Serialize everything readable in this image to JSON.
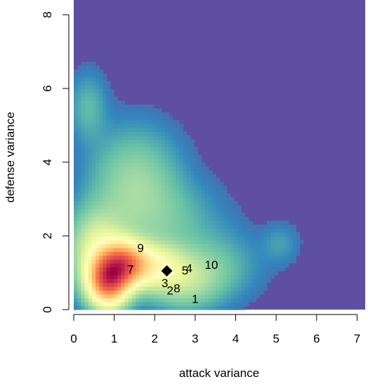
{
  "chart_data": {
    "type": "heatmap",
    "title": "",
    "xlabel": "attack variance",
    "ylabel": "defense variance",
    "xlim": [
      0,
      7.2
    ],
    "ylim": [
      0,
      8.4
    ],
    "x_ticks": [
      0,
      1,
      2,
      3,
      4,
      5,
      6,
      7
    ],
    "y_ticks": [
      0,
      2,
      4,
      6,
      8
    ],
    "grid": false,
    "palette": [
      "#5E4FA2",
      "#3288BD",
      "#66C2A5",
      "#ABDDA4",
      "#E6F598",
      "#FFFFBF",
      "#FEE08B",
      "#FDAE61",
      "#F46D43",
      "#D53E4F",
      "#9E0142"
    ],
    "background_color": "#5E4FA2",
    "density_components": [
      {
        "x": 0.85,
        "y": 0.8,
        "sx": 0.32,
        "sy": 0.45,
        "w": 1.0
      },
      {
        "x": 1.25,
        "y": 1.25,
        "sx": 0.35,
        "sy": 0.4,
        "w": 0.75
      },
      {
        "x": 0.6,
        "y": 1.6,
        "sx": 0.45,
        "sy": 0.7,
        "w": 0.3
      },
      {
        "x": 1.9,
        "y": 1.2,
        "sx": 0.5,
        "sy": 0.4,
        "w": 0.35
      },
      {
        "x": 2.7,
        "y": 0.8,
        "sx": 0.6,
        "sy": 0.5,
        "w": 0.18
      },
      {
        "x": 1.5,
        "y": 3.5,
        "sx": 0.7,
        "sy": 0.9,
        "w": 0.14
      },
      {
        "x": 0.35,
        "y": 5.5,
        "sx": 0.3,
        "sy": 0.6,
        "w": 0.07
      },
      {
        "x": 3.5,
        "y": 1.2,
        "sx": 0.7,
        "sy": 0.6,
        "w": 0.07
      },
      {
        "x": 5.1,
        "y": 1.8,
        "sx": 0.3,
        "sy": 0.35,
        "w": 0.04
      },
      {
        "x": 2.2,
        "y": 2.4,
        "sx": 0.9,
        "sy": 0.7,
        "w": 0.08
      }
    ],
    "marker": {
      "shape": "diamond",
      "x": 2.3,
      "y": 1.05,
      "color": "#000000"
    },
    "labels": [
      {
        "text": "1",
        "x": 3.0,
        "y": 0.3
      },
      {
        "text": "2",
        "x": 2.38,
        "y": 0.52
      },
      {
        "text": "3",
        "x": 2.25,
        "y": 0.72
      },
      {
        "text": "4",
        "x": 2.85,
        "y": 1.12
      },
      {
        "text": "5",
        "x": 2.75,
        "y": 1.07
      },
      {
        "text": "7",
        "x": 1.4,
        "y": 1.1
      },
      {
        "text": "8",
        "x": 2.55,
        "y": 0.58
      },
      {
        "text": "9",
        "x": 1.65,
        "y": 1.68
      },
      {
        "text": "10",
        "x": 3.4,
        "y": 1.22
      }
    ]
  }
}
